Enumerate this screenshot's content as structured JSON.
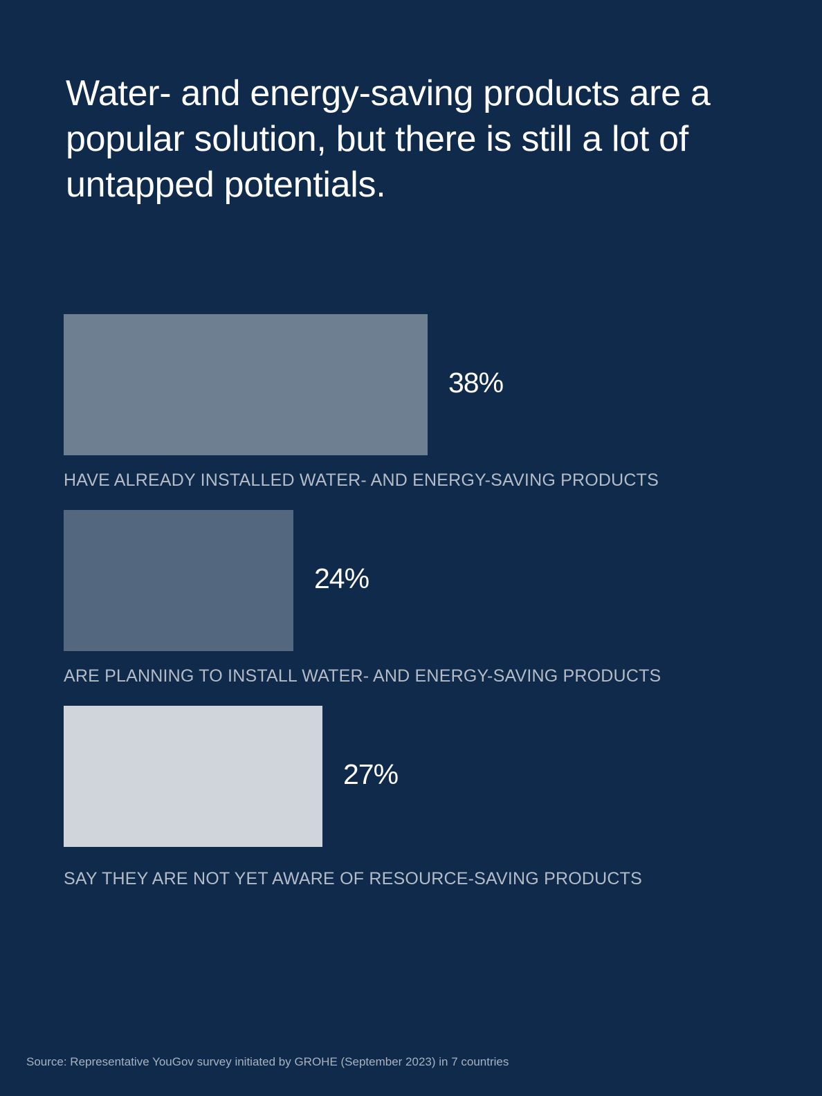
{
  "chart_data": {
    "type": "bar",
    "orientation": "horizontal",
    "title": "Water- and energy-saving products are a popular solution, but there is still a lot of untapped potentials.",
    "categories": [
      "HAVE ALREADY INSTALLED WATER- AND ENERGY-SAVING PRODUCTS",
      "ARE PLANNING TO INSTALL WATER- AND ENERGY-SAVING PRODUCTS",
      "SAY THEY ARE NOT YET AWARE OF RESOURCE-SAVING PRODUCTS"
    ],
    "values": [
      38,
      24,
      27
    ],
    "value_labels": [
      "38%",
      "24%",
      "27%"
    ],
    "colors": [
      "#6e7f92",
      "#53687f",
      "#d0d5dc"
    ],
    "xlabel": "",
    "ylabel": "",
    "xlim": [
      0,
      100
    ],
    "grid": false,
    "source": "Source: Representative YouGov survey initiated by GROHE (September 2023) in 7 countries"
  }
}
